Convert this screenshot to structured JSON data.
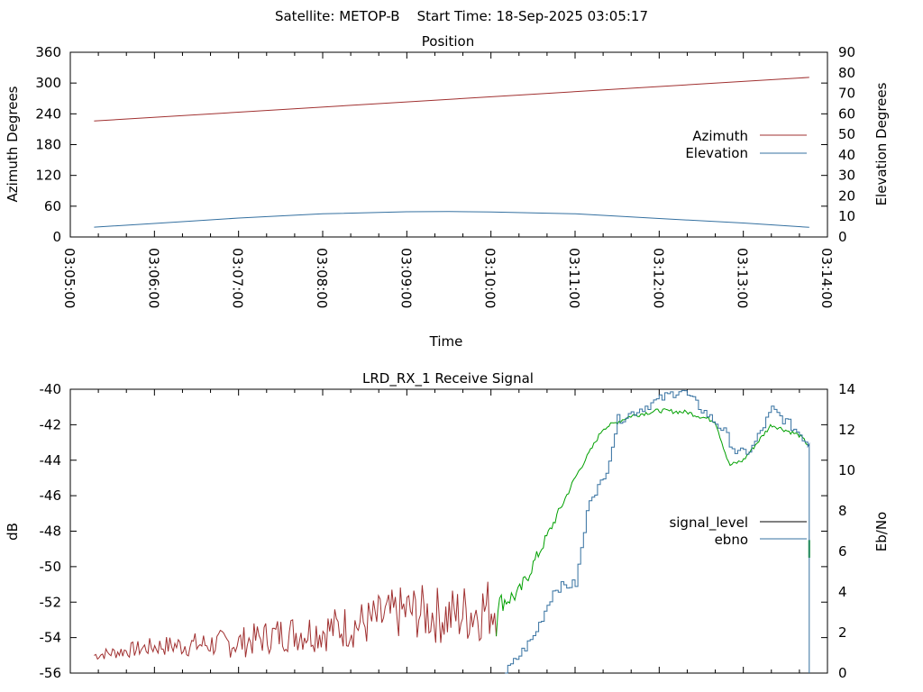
{
  "page_title": "Satellite: METOP-B    Start Time: 18-Sep-2025 03:05:17",
  "colors": {
    "azimuth": "#a03030",
    "elevation": "#3470a0",
    "signal_level": "#000000",
    "ebno_legend": "#3470a0",
    "signal_red": "#a03030",
    "signal_green": "#00a000",
    "ebno_blue": "#3470a0"
  },
  "chart_data": [
    {
      "type": "line",
      "title": "Position",
      "xlabel": "Time",
      "ylabel": "Azimuth Degrees",
      "y2label": "Elevation Degrees",
      "ylim": [
        0,
        360
      ],
      "y2lim": [
        0,
        90
      ],
      "xlim": [
        "03:05:00",
        "03:14:00"
      ],
      "y_ticks": [
        "0",
        "60",
        "120",
        "180",
        "240",
        "300",
        "360"
      ],
      "y2_ticks": [
        "0",
        "10",
        "20",
        "30",
        "40",
        "50",
        "60",
        "70",
        "80",
        "90"
      ],
      "x_ticks": [
        "03:05:00",
        "03:06:00",
        "03:07:00",
        "03:08:00",
        "03:09:00",
        "03:10:00",
        "03:11:00",
        "03:12:00",
        "03:13:00",
        "03:14:00"
      ],
      "legend_position": "right",
      "series": [
        {
          "name": "Azimuth",
          "axis": "left",
          "x": [
            "03:05:17",
            "03:13:47"
          ],
          "y": [
            226,
            311
          ]
        },
        {
          "name": "Elevation",
          "axis": "right",
          "x": [
            "03:05:17",
            "03:06:00",
            "03:07:00",
            "03:08:00",
            "03:09:00",
            "03:09:30",
            "03:10:00",
            "03:11:00",
            "03:12:00",
            "03:13:00",
            "03:13:47"
          ],
          "y": [
            4.8,
            6.6,
            9.2,
            11.3,
            12.3,
            12.4,
            12.2,
            11.3,
            9.0,
            6.8,
            4.7
          ]
        }
      ]
    },
    {
      "type": "line",
      "title": "LRD_RX_1 Receive Signal",
      "ylabel": "dB",
      "y2label": "Eb/No",
      "ylim": [
        -56,
        -40
      ],
      "y2lim": [
        0,
        14
      ],
      "xlim": [
        "03:05:00",
        "03:14:00"
      ],
      "y_ticks": [
        "-56",
        "-54",
        "-52",
        "-50",
        "-48",
        "-46",
        "-44",
        "-42",
        "-40"
      ],
      "y2_ticks": [
        "0",
        "2",
        "4",
        "6",
        "8",
        "10",
        "12",
        "14"
      ],
      "legend_position": "right",
      "legend": [
        "signal_level",
        "ebno"
      ],
      "series": [
        {
          "name": "signal_level",
          "axis": "left",
          "x": [
            "03:05:17",
            "03:06:00",
            "03:07:00",
            "03:07:30",
            "03:08:00",
            "03:08:30",
            "03:09:00",
            "03:09:30",
            "03:10:00",
            "03:10:20",
            "03:10:40",
            "03:11:00",
            "03:11:20",
            "03:11:40",
            "03:12:00",
            "03:12:20",
            "03:12:40",
            "03:12:50",
            "03:13:00",
            "03:13:20",
            "03:13:40",
            "03:13:47"
          ],
          "y": [
            -55.0,
            -54.5,
            -54.3,
            -53.8,
            -53.6,
            -53.2,
            -52.5,
            -52.8,
            -52.3,
            -51.5,
            -48.3,
            -45.0,
            -42.2,
            -41.5,
            -41.2,
            -41.3,
            -41.8,
            -44.3,
            -44.0,
            -42.0,
            -42.6,
            -43.2
          ]
        },
        {
          "name": "ebno",
          "axis": "right",
          "x": [
            "03:10:10",
            "03:10:30",
            "03:10:45",
            "03:11:00",
            "03:11:10",
            "03:11:20",
            "03:11:30",
            "03:12:00",
            "03:12:15",
            "03:12:30",
            "03:12:45",
            "03:12:55",
            "03:13:05",
            "03:13:20",
            "03:13:40",
            "03:13:46",
            "03:13:47"
          ],
          "y": [
            0.0,
            1.8,
            4.2,
            4.4,
            8.7,
            9.5,
            12.5,
            13.5,
            14.0,
            13.0,
            12.0,
            10.8,
            11.0,
            13.0,
            11.8,
            11.3,
            0.0
          ]
        }
      ]
    }
  ]
}
